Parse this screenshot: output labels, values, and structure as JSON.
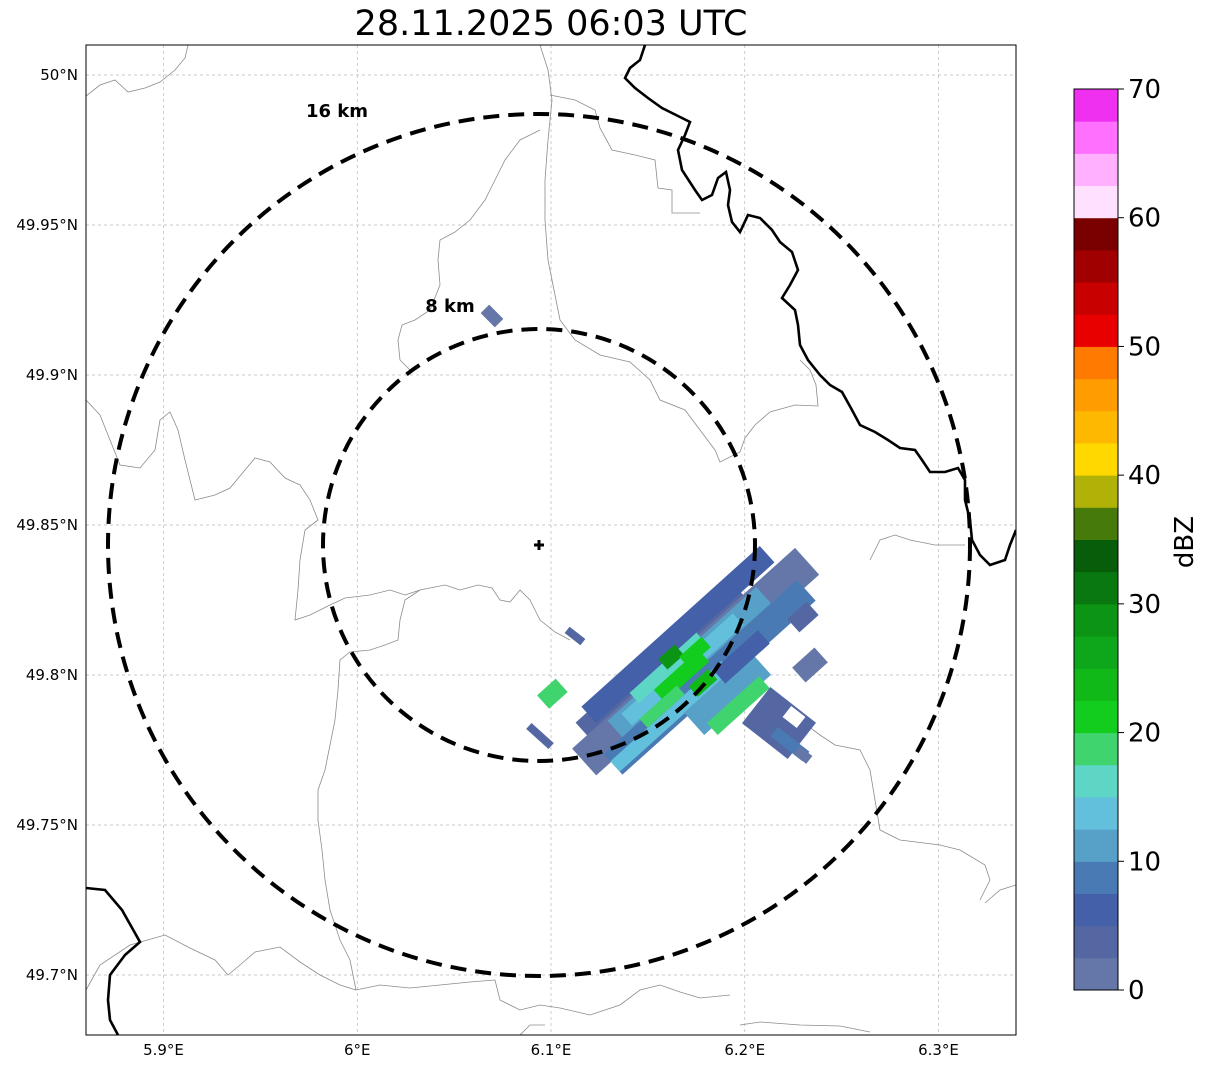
{
  "title": "28.11.2025 06:03 UTC",
  "map": {
    "lon_range": [
      5.86,
      6.34
    ],
    "lat_range": [
      49.68,
      50.01
    ],
    "lon_ticks": [
      {
        "value": 5.9,
        "label": "5.9°E"
      },
      {
        "value": 6.0,
        "label": "6°E"
      },
      {
        "value": 6.1,
        "label": "6.1°E"
      },
      {
        "value": 6.2,
        "label": "6.2°E"
      },
      {
        "value": 6.3,
        "label": "6.3°E"
      }
    ],
    "lat_ticks": [
      {
        "value": 50.0,
        "label": "50°N"
      },
      {
        "value": 49.95,
        "label": "49.95°N"
      },
      {
        "value": 49.9,
        "label": "49.9°N"
      },
      {
        "value": 49.85,
        "label": "49.85°N"
      },
      {
        "value": 49.8,
        "label": "49.8°N"
      },
      {
        "value": 49.75,
        "label": "49.75°N"
      },
      {
        "value": 49.7,
        "label": "49.7°N"
      }
    ],
    "grid": true,
    "radar_site": {
      "lon": 6.095,
      "lat": 49.843
    },
    "rings": [
      {
        "radius_km": 8,
        "label": "8 km"
      },
      {
        "radius_km": 16,
        "label": "16 km"
      }
    ]
  },
  "colorbar": {
    "label": "dBZ",
    "min": 0,
    "max": 70,
    "tick_values": [
      0,
      10,
      20,
      30,
      40,
      50,
      60,
      70
    ],
    "tick_labels": [
      "0",
      "10",
      "20",
      "30",
      "40",
      "50",
      "60",
      "70"
    ],
    "colors": [
      "#6477a8",
      "#5467a2",
      "#4360a8",
      "#4a7ab4",
      "#57a0c8",
      "#63c0dc",
      "#5ed6c6",
      "#3fd46e",
      "#12cc1e",
      "#10b818",
      "#0ea61a",
      "#0c9414",
      "#0a7810",
      "#075d0a",
      "#467a0a",
      "#b0b208",
      "#ffd800",
      "#ffb800",
      "#ff9c00",
      "#ff7a00",
      "#e80000",
      "#c80000",
      "#a00000",
      "#7a0000",
      "#ffe0ff",
      "#ffb0ff",
      "#ff70ff",
      "#f030f0"
    ]
  }
}
